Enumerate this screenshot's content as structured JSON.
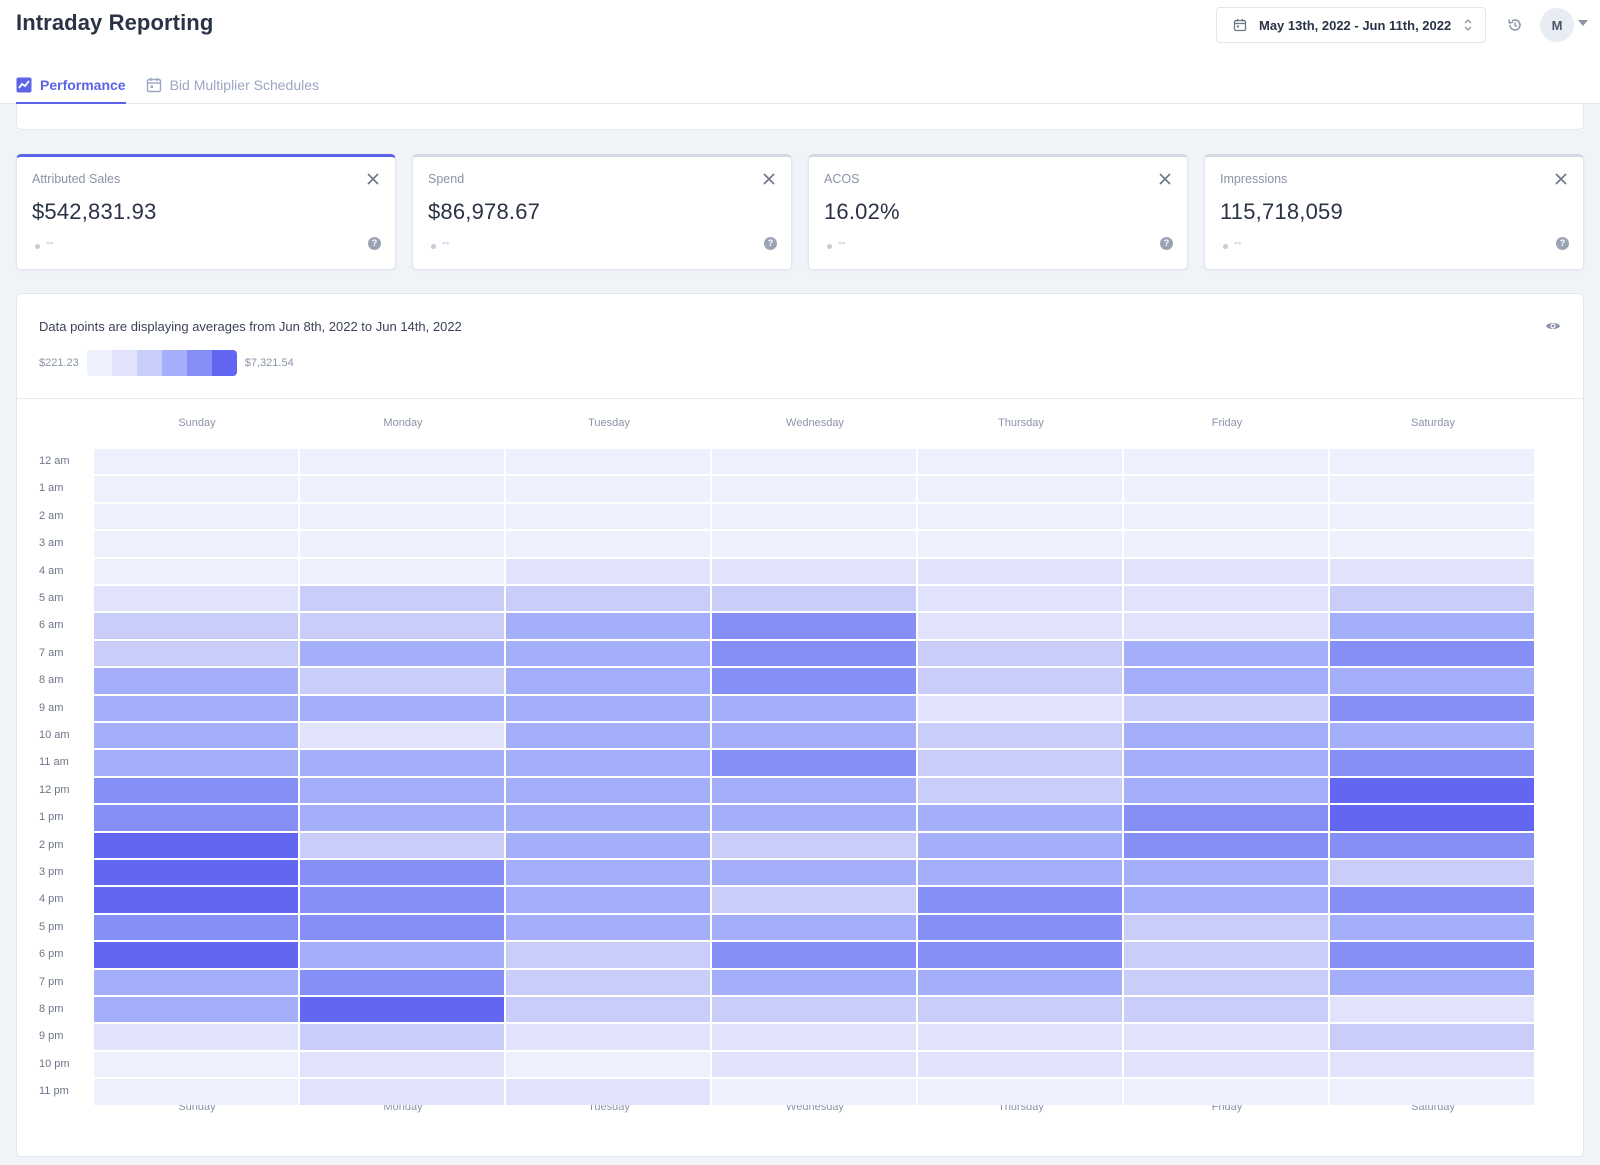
{
  "header": {
    "title": "Intraday Reporting",
    "date_range": "May 13th, 2022 - Jun 11th, 2022",
    "avatar_initial": "M"
  },
  "tabs": [
    {
      "label": "Performance",
      "active": true,
      "icon": "chart-line-icon"
    },
    {
      "label": "Bid Multiplier Schedules",
      "active": false,
      "icon": "calendar-icon"
    }
  ],
  "metrics": [
    {
      "label": "Attributed Sales",
      "value": "$542,831.93",
      "compare": "--",
      "active": true
    },
    {
      "label": "Spend",
      "value": "$86,978.67",
      "compare": "--",
      "active": false
    },
    {
      "label": "ACOS",
      "value": "16.02%",
      "compare": "--",
      "active": false
    },
    {
      "label": "Impressions",
      "value": "115,718,059",
      "compare": "--",
      "active": false
    }
  ],
  "heatmap": {
    "note": "Data points are displaying averages from Jun 8th, 2022 to Jun 14th, 2022",
    "legend_min": "$221.23",
    "legend_max": "$7,321.54",
    "legend_colors": [
      "#eef0fd",
      "#e0e3fb",
      "#c8cdfa",
      "#a5aefa",
      "#868ff6",
      "#6366f1"
    ]
  },
  "chart_data": {
    "type": "heatmap",
    "title": "Data points are displaying averages from Jun 8th, 2022 to Jun 14th, 2022",
    "x": [
      "Sunday",
      "Monday",
      "Tuesday",
      "Wednesday",
      "Thursday",
      "Friday",
      "Saturday"
    ],
    "y": [
      "12 am",
      "1 am",
      "2 am",
      "3 am",
      "4 am",
      "5 am",
      "6 am",
      "7 am",
      "8 am",
      "9 am",
      "10 am",
      "11 am",
      "12 pm",
      "1 pm",
      "2 pm",
      "3 pm",
      "4 pm",
      "5 pm",
      "6 pm",
      "7 pm",
      "8 pm",
      "9 pm",
      "10 pm",
      "11 pm"
    ],
    "value_range": [
      "$221.23",
      "$7,321.54"
    ],
    "color_scale": [
      "#eef0fd",
      "#e0e3fb",
      "#c8cdfa",
      "#a5aefa",
      "#868ff6",
      "#6366f1"
    ],
    "levels": [
      [
        0,
        0,
        0,
        0,
        0,
        0,
        0
      ],
      [
        0,
        0,
        0,
        0,
        0,
        0,
        0
      ],
      [
        0,
        0,
        0,
        0,
        0,
        0,
        0
      ],
      [
        0,
        0,
        0,
        0,
        0,
        0,
        0
      ],
      [
        0,
        0,
        1,
        1,
        1,
        1,
        1
      ],
      [
        1,
        2,
        2,
        2,
        1,
        1,
        2
      ],
      [
        2,
        2,
        3,
        4,
        1,
        1,
        3
      ],
      [
        2,
        3,
        3,
        4,
        2,
        3,
        4
      ],
      [
        3,
        2,
        3,
        4,
        2,
        3,
        3
      ],
      [
        3,
        3,
        3,
        3,
        1,
        2,
        4
      ],
      [
        3,
        1,
        3,
        3,
        2,
        3,
        3
      ],
      [
        3,
        3,
        3,
        4,
        2,
        3,
        4
      ],
      [
        4,
        3,
        3,
        3,
        2,
        3,
        5
      ],
      [
        4,
        3,
        3,
        3,
        3,
        4,
        5
      ],
      [
        5,
        2,
        3,
        2,
        3,
        4,
        4
      ],
      [
        5,
        4,
        3,
        3,
        3,
        3,
        2
      ],
      [
        5,
        4,
        3,
        2,
        4,
        3,
        4
      ],
      [
        4,
        4,
        3,
        3,
        4,
        2,
        3
      ],
      [
        5,
        3,
        2,
        4,
        4,
        2,
        4
      ],
      [
        3,
        4,
        2,
        3,
        3,
        2,
        3
      ],
      [
        3,
        5,
        2,
        2,
        2,
        2,
        1
      ],
      [
        1,
        2,
        1,
        1,
        1,
        1,
        2
      ],
      [
        0,
        1,
        0,
        1,
        1,
        1,
        1
      ],
      [
        0,
        1,
        1,
        0,
        0,
        0,
        0
      ]
    ]
  }
}
